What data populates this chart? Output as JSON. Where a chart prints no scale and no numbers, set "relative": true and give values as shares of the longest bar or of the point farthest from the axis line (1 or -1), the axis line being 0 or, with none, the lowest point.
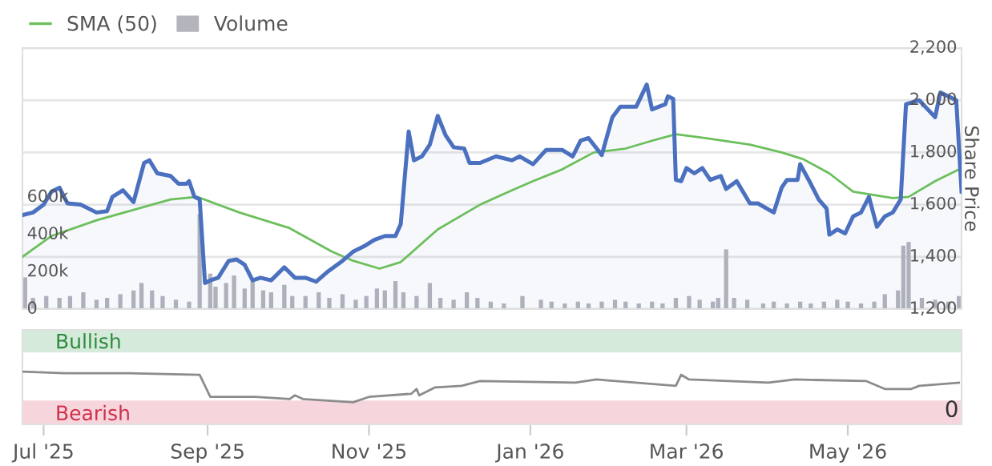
{
  "chart_data": [
    {
      "type": "line",
      "ylabel": "Share Price",
      "legend": "top left",
      "grid": "y",
      "tick_labels": "y",
      "xlim": [
        "2025-06-23",
        "2026-06-13"
      ],
      "ylim": [
        1200,
        2200
      ],
      "yticks": [
        {
          "value": 1200,
          "label": "1,200"
        },
        {
          "value": 1400,
          "label": "1,400"
        },
        {
          "value": 1600,
          "label": "1,600"
        },
        {
          "value": 1800,
          "label": "1,800"
        },
        {
          "value": 2000,
          "label": "2,000"
        },
        {
          "value": 2200,
          "label": "2,200"
        }
      ],
      "y2lim": [
        0,
        1400000
      ],
      "y2ticks": [
        {
          "value": 0,
          "label": "0"
        },
        {
          "value": 200000,
          "label": "200k"
        },
        {
          "value": 400000,
          "label": "400k"
        },
        {
          "value": 600000,
          "label": "600k"
        }
      ],
      "series": [
        {
          "name": "Volume",
          "type": "bar",
          "axis": "y2",
          "color": "#b4b4bc",
          "x": [
            "2025-06-24",
            "2025-06-27",
            "2025-07-02",
            "2025-07-07",
            "2025-07-11",
            "2025-07-16",
            "2025-07-21",
            "2025-07-25",
            "2025-07-30",
            "2025-08-04",
            "2025-08-07",
            "2025-08-11",
            "2025-08-15",
            "2025-08-20",
            "2025-08-25",
            "2025-08-29",
            "2025-09-02",
            "2025-09-04",
            "2025-09-08",
            "2025-09-11",
            "2025-09-15",
            "2025-09-18",
            "2025-09-22",
            "2025-09-25",
            "2025-09-30",
            "2025-10-03",
            "2025-10-08",
            "2025-10-13",
            "2025-10-17",
            "2025-10-22",
            "2025-10-27",
            "2025-10-31",
            "2025-11-04",
            "2025-11-07",
            "2025-11-11",
            "2025-11-14",
            "2025-11-19",
            "2025-11-24",
            "2025-11-28",
            "2025-12-03",
            "2025-12-08",
            "2025-12-12",
            "2025-12-17",
            "2025-12-22",
            "2025-12-29",
            "2026-01-05",
            "2026-01-09",
            "2026-01-14",
            "2026-01-19",
            "2026-01-23",
            "2026-01-28",
            "2026-02-02",
            "2026-02-06",
            "2026-02-11",
            "2026-02-16",
            "2026-02-20",
            "2026-02-25",
            "2026-03-02",
            "2026-03-06",
            "2026-03-11",
            "2026-03-13",
            "2026-03-16",
            "2026-03-19",
            "2026-03-24",
            "2026-03-30",
            "2026-04-03",
            "2026-04-08",
            "2026-04-13",
            "2026-04-17",
            "2026-04-22",
            "2026-04-27",
            "2026-05-01",
            "2026-05-06",
            "2026-05-11",
            "2026-05-15",
            "2026-05-20",
            "2026-05-22",
            "2026-05-24",
            "2026-05-29",
            "2026-06-03",
            "2026-06-08",
            "2026-06-12"
          ],
          "values": [
            170000,
            60000,
            70000,
            60000,
            70000,
            90000,
            50000,
            60000,
            80000,
            100000,
            140000,
            100000,
            70000,
            50000,
            40000,
            510000,
            190000,
            120000,
            140000,
            180000,
            110000,
            150000,
            100000,
            90000,
            130000,
            70000,
            70000,
            90000,
            60000,
            80000,
            50000,
            70000,
            110000,
            100000,
            150000,
            90000,
            70000,
            140000,
            60000,
            50000,
            90000,
            60000,
            40000,
            30000,
            70000,
            50000,
            40000,
            30000,
            40000,
            30000,
            40000,
            50000,
            40000,
            30000,
            40000,
            30000,
            60000,
            70000,
            50000,
            40000,
            60000,
            320000,
            60000,
            50000,
            30000,
            40000,
            30000,
            40000,
            30000,
            40000,
            50000,
            40000,
            30000,
            40000,
            80000,
            100000,
            340000,
            360000,
            60000,
            50000,
            40000,
            70000
          ]
        },
        {
          "name": "SMA (50)",
          "type": "line",
          "color": "#6cbf5c",
          "x": [
            "2025-06-23",
            "2025-07-04",
            "2025-07-21",
            "2025-08-04",
            "2025-08-18",
            "2025-08-28",
            "2025-09-13",
            "2025-10-02",
            "2025-10-18",
            "2025-10-26",
            "2025-11-05",
            "2025-11-13",
            "2025-11-27",
            "2025-12-13",
            "2025-12-25",
            "2026-01-02",
            "2026-01-13",
            "2026-01-25",
            "2026-02-06",
            "2026-02-16",
            "2026-02-25",
            "2026-03-08",
            "2026-03-25",
            "2026-04-06",
            "2026-04-14",
            "2026-04-24",
            "2026-05-03",
            "2026-05-18",
            "2026-05-24",
            "2026-06-03",
            "2026-06-12"
          ],
          "values": [
            1400,
            1480,
            1540,
            1580,
            1620,
            1630,
            1570,
            1510,
            1420,
            1385,
            1355,
            1380,
            1505,
            1600,
            1655,
            1690,
            1735,
            1800,
            1815,
            1845,
            1870,
            1855,
            1830,
            1800,
            1775,
            1720,
            1650,
            1625,
            1630,
            1690,
            1735
          ]
        },
        {
          "type": "area",
          "color": "#4a70bf",
          "x": [
            "2025-06-23",
            "2025-06-27",
            "2025-07-01",
            "2025-07-04",
            "2025-07-07",
            "2025-07-10",
            "2025-07-15",
            "2025-07-21",
            "2025-07-25",
            "2025-07-27",
            "2025-07-31",
            "2025-08-04",
            "2025-08-08",
            "2025-08-10",
            "2025-08-13",
            "2025-08-18",
            "2025-08-21",
            "2025-08-24",
            "2025-08-25",
            "2025-08-27",
            "2025-08-29",
            "2025-08-31",
            "2025-09-02",
            "2025-09-05",
            "2025-09-09",
            "2025-09-12",
            "2025-09-15",
            "2025-09-18",
            "2025-09-21",
            "2025-09-25",
            "2025-09-30",
            "2025-10-04",
            "2025-10-08",
            "2025-10-12",
            "2025-10-16",
            "2025-10-22",
            "2025-10-26",
            "2025-10-30",
            "2025-11-03",
            "2025-11-07",
            "2025-11-11",
            "2025-11-13",
            "2025-11-16",
            "2025-11-18",
            "2025-11-21",
            "2025-11-24",
            "2025-11-27",
            "2025-11-30",
            "2025-12-03",
            "2025-12-07",
            "2025-12-09",
            "2025-12-13",
            "2025-12-19",
            "2025-12-25",
            "2025-12-28",
            "2026-01-02",
            "2026-01-07",
            "2026-01-13",
            "2026-01-17",
            "2026-01-20",
            "2026-01-23",
            "2026-01-28",
            "2026-02-01",
            "2026-02-04",
            "2026-02-10",
            "2026-02-14",
            "2026-02-16",
            "2026-02-21",
            "2026-02-22",
            "2026-02-24",
            "2026-02-25",
            "2026-02-27",
            "2026-03-01",
            "2026-03-04",
            "2026-03-07",
            "2026-03-10",
            "2026-03-14",
            "2026-03-16",
            "2026-03-20",
            "2026-03-25",
            "2026-03-28",
            "2026-04-03",
            "2026-04-06",
            "2026-04-08",
            "2026-04-12",
            "2026-04-13",
            "2026-04-17",
            "2026-04-20",
            "2026-04-23",
            "2026-04-24",
            "2026-04-27",
            "2026-04-30",
            "2026-05-03",
            "2026-05-06",
            "2026-05-09",
            "2026-05-12",
            "2026-05-15",
            "2026-05-18",
            "2026-05-21",
            "2026-05-23",
            "2026-05-28",
            "2026-06-03",
            "2026-06-05",
            "2026-06-08",
            "2026-06-11",
            "2026-06-13"
          ],
          "values": [
            1560,
            1570,
            1600,
            1650,
            1665,
            1605,
            1600,
            1570,
            1575,
            1630,
            1655,
            1610,
            1760,
            1770,
            1720,
            1710,
            1680,
            1680,
            1690,
            1630,
            1620,
            1300,
            1310,
            1320,
            1385,
            1390,
            1370,
            1310,
            1320,
            1310,
            1360,
            1320,
            1320,
            1305,
            1340,
            1385,
            1420,
            1440,
            1465,
            1480,
            1480,
            1525,
            1880,
            1770,
            1785,
            1830,
            1940,
            1865,
            1820,
            1815,
            1760,
            1760,
            1785,
            1770,
            1785,
            1755,
            1810,
            1810,
            1785,
            1845,
            1855,
            1790,
            1935,
            1975,
            1975,
            2060,
            1965,
            1985,
            2015,
            2005,
            1695,
            1690,
            1740,
            1720,
            1740,
            1695,
            1710,
            1660,
            1690,
            1605,
            1605,
            1570,
            1665,
            1695,
            1695,
            1755,
            1680,
            1620,
            1585,
            1485,
            1505,
            1490,
            1555,
            1570,
            1630,
            1515,
            1555,
            1570,
            1620,
            1985,
            2000,
            1935,
            2030,
            2015,
            2000,
            1650
          ]
        }
      ]
    },
    {
      "type": "line",
      "relative": true,
      "tick_labels": "x",
      "xlim": [
        "2025-06-23",
        "2026-06-13"
      ],
      "xticks": [
        {
          "value": "2025-07-01",
          "label": "Jul '25"
        },
        {
          "value": "2025-09-01",
          "label": "Sep '25"
        },
        {
          "value": "2025-11-01",
          "label": "Nov '25"
        },
        {
          "value": "2026-01-01",
          "label": "Jan '26"
        },
        {
          "value": "2026-03-01",
          "label": "Mar '26"
        },
        {
          "value": "2026-05-01",
          "label": "May '26"
        }
      ],
      "bands": [
        {
          "axis": "y",
          "from": 1.36,
          "to": 1.79,
          "label": "Bullish",
          "color": "#d5eadb"
        },
        {
          "axis": "y",
          "from": 0,
          "to": 0.45,
          "label": "Bearish",
          "color": "#f6d6dc"
        }
      ],
      "annotations": [
        "0"
      ],
      "series": [
        {
          "color": "#8c8c8c",
          "x": [
            "2025-06-23",
            "2025-07-09",
            "2025-08-02",
            "2025-08-29",
            "2025-09-02",
            "2025-09-19",
            "2025-10-02",
            "2025-10-04",
            "2025-10-07",
            "2025-10-26",
            "2025-11-01",
            "2025-11-17",
            "2025-11-19",
            "2025-11-20",
            "2025-11-26",
            "2025-12-06",
            "2025-12-13",
            "2026-01-18",
            "2026-01-26",
            "2026-02-25",
            "2026-02-27",
            "2026-03-02",
            "2026-04-01",
            "2026-04-11",
            "2026-05-08",
            "2026-05-15",
            "2026-05-25",
            "2026-05-28",
            "2026-06-12"
          ],
          "values": [
            1.0,
            0.97,
            0.97,
            0.94,
            0.52,
            0.52,
            0.48,
            0.55,
            0.48,
            0.42,
            0.52,
            0.58,
            0.67,
            0.55,
            0.7,
            0.73,
            0.82,
            0.79,
            0.85,
            0.73,
            0.94,
            0.85,
            0.79,
            0.85,
            0.82,
            0.67,
            0.67,
            0.73,
            0.79
          ]
        }
      ]
    }
  ]
}
